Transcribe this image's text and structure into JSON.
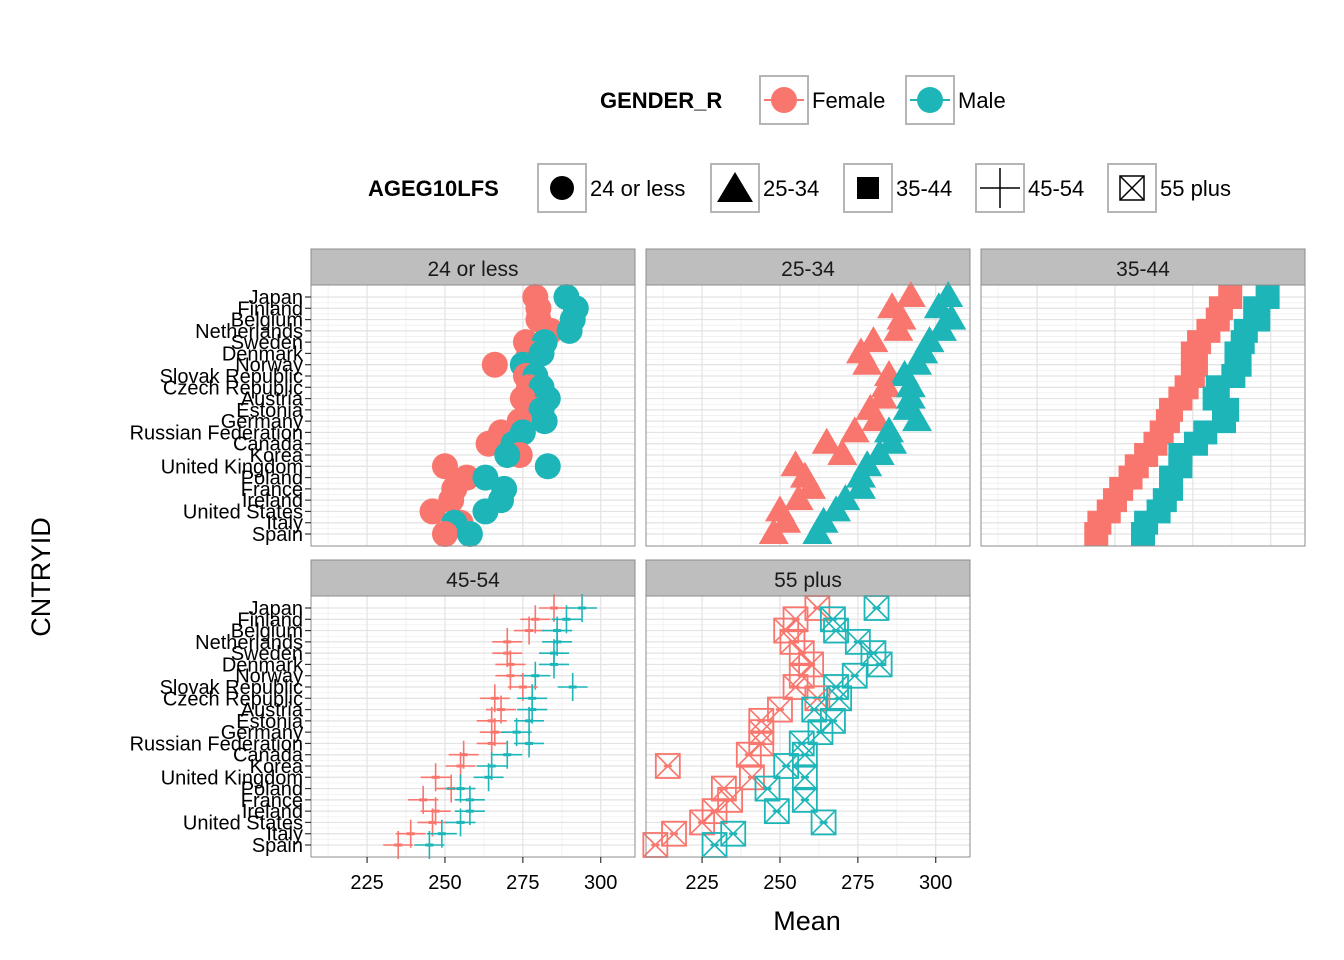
{
  "colors": {
    "Female": "#f8766d",
    "Male": "#1db5b8",
    "strip_bg": "#bebebe",
    "grid_major": "#e3e3e3",
    "grid_minor": "#f2f2f2",
    "panel_border": "#8c8c8c"
  },
  "legend": {
    "gender": {
      "title": "GENDER_R",
      "items": [
        "Female",
        "Male"
      ]
    },
    "age": {
      "title": "AGEG10LFS",
      "items": [
        "24 or less",
        "25-34",
        "35-44",
        "45-54",
        "55 plus"
      ]
    }
  },
  "chart_data": {
    "type": "scatter",
    "title": "",
    "xlabel": "Mean",
    "ylabel": "CNTRYID",
    "xlim": [
      207,
      311
    ],
    "xticks": [
      225,
      250,
      275,
      300
    ],
    "countries": [
      "Japan",
      "Finland",
      "Belgium",
      "Netherlands",
      "Sweden",
      "Denmark",
      "Norway",
      "Slovak Republic",
      "Czech Republic",
      "Austria",
      "Estonia",
      "Germany",
      "Russian Federation",
      "Canada",
      "Korea",
      "United Kingdom",
      "Poland",
      "France",
      "Ireland",
      "United States",
      "Italy",
      "Spain"
    ],
    "panels": [
      {
        "label": "24 or less",
        "shape": "circle",
        "female": [
          279,
          280,
          280,
          284,
          276,
          277,
          266,
          276,
          277,
          275,
          279,
          274,
          268,
          264,
          274,
          250,
          257,
          253,
          252,
          246,
          255,
          250
        ],
        "male": [
          289,
          292,
          291,
          290,
          282,
          281,
          275,
          279,
          281,
          283,
          281,
          282,
          275,
          272,
          270,
          283,
          263,
          269,
          268,
          263,
          253,
          258
        ]
      },
      {
        "label": "25-34",
        "shape": "triangle",
        "female": [
          292,
          286,
          289,
          288,
          280,
          276,
          278,
          285,
          284,
          283,
          279,
          281,
          274,
          265,
          270,
          255,
          258,
          260,
          256,
          250,
          252,
          248
        ],
        "male": [
          304,
          301,
          305,
          302,
          298,
          296,
          294,
          290,
          292,
          292,
          291,
          294,
          285,
          286,
          282,
          278,
          276,
          276,
          271,
          268,
          264,
          262
        ]
      },
      {
        "label": "35-44",
        "shape": "square",
        "female": [
          287,
          284,
          283,
          280,
          277,
          275,
          276,
          275,
          273,
          271,
          268,
          267,
          265,
          263,
          260,
          257,
          255,
          252,
          250,
          248,
          245,
          244
        ],
        "male": [
          299,
          295,
          296,
          292,
          291,
          289,
          290,
          288,
          283,
          282,
          286,
          285,
          279,
          276,
          271,
          271,
          268,
          268,
          266,
          264,
          260,
          259
        ]
      },
      {
        "label": "45-54",
        "shape": "cross",
        "female": [
          285,
          279,
          277,
          270,
          270,
          271,
          271,
          275,
          266,
          268,
          265,
          266,
          265,
          256,
          255,
          247,
          252,
          243,
          247,
          246,
          239,
          235
        ],
        "male": [
          294,
          289,
          286,
          286,
          285,
          285,
          279,
          291,
          278,
          278,
          277,
          273,
          277,
          270,
          265,
          264,
          255,
          258,
          258,
          255,
          249,
          245
        ]
      },
      {
        "label": "55 plus",
        "shape": "boxcross",
        "female": [
          262,
          255,
          252,
          254,
          257,
          260,
          257,
          255,
          262,
          250,
          244,
          244,
          244,
          240,
          214,
          241,
          232,
          234,
          229,
          225,
          216,
          210
        ],
        "male": [
          281,
          267,
          268,
          275,
          280,
          282,
          274,
          268,
          269,
          261,
          267,
          263,
          257,
          258,
          252,
          258,
          246,
          258,
          249,
          264,
          235,
          229
        ]
      }
    ]
  }
}
